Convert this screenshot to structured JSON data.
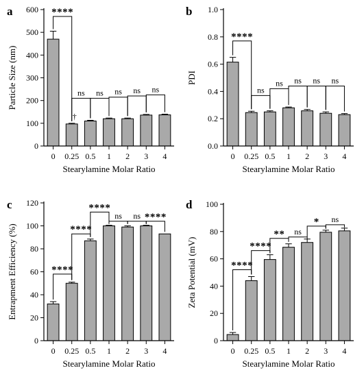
{
  "chart_data": [
    {
      "type": "bar",
      "panel": "a",
      "categories": [
        "0",
        "0.25",
        "0.5",
        "1",
        "2",
        "3",
        "4"
      ],
      "values": [
        470,
        97,
        110,
        120,
        120,
        136,
        137
      ],
      "errors": [
        35,
        3,
        3,
        3,
        3,
        3,
        3
      ],
      "xlabel": "Stearylamine Molar Ratio",
      "ylabel": "Particle Size (nm)",
      "ylim": [
        0,
        600
      ],
      "yticks": [
        "0",
        "100",
        "200",
        "300",
        "400",
        "500",
        "600"
      ],
      "annotations": [
        {
          "from": 0,
          "to": 1,
          "label": "****",
          "y": 570
        },
        {
          "from": 1,
          "to": 2,
          "label": "ns",
          "y": 210
        },
        {
          "from": 2,
          "to": 3,
          "label": "ns",
          "y": 210
        },
        {
          "from": 3,
          "to": 4,
          "label": "ns",
          "y": 215
        },
        {
          "from": 4,
          "to": 5,
          "label": "ns",
          "y": 220
        },
        {
          "from": 5,
          "to": 6,
          "label": "ns",
          "y": 225
        }
      ],
      "marks": [
        {
          "category": 1,
          "label": "†"
        }
      ]
    },
    {
      "type": "bar",
      "panel": "b",
      "categories": [
        "0",
        "0.25",
        "0.5",
        "1",
        "2",
        "3",
        "4"
      ],
      "values": [
        0.615,
        0.245,
        0.25,
        0.28,
        0.258,
        0.24,
        0.23
      ],
      "errors": [
        0.035,
        0.01,
        0.008,
        0.006,
        0.01,
        0.01,
        0.008
      ],
      "xlabel": "Stearylamine Molar Ratio",
      "ylabel": "PDI",
      "ylim": [
        0,
        1.0
      ],
      "yticks": [
        "0.0",
        "0.2",
        "0.4",
        "0.6",
        "0.8",
        "1.0"
      ],
      "annotations": [
        {
          "from": 0,
          "to": 1,
          "label": "****",
          "y": 0.77
        },
        {
          "from": 1,
          "to": 2,
          "label": "ns",
          "y": 0.37
        },
        {
          "from": 2,
          "to": 3,
          "label": "ns",
          "y": 0.42
        },
        {
          "from": 3,
          "to": 4,
          "label": "ns",
          "y": 0.44
        },
        {
          "from": 4,
          "to": 5,
          "label": "ns",
          "y": 0.44
        },
        {
          "from": 5,
          "to": 6,
          "label": "ns",
          "y": 0.44
        }
      ]
    },
    {
      "type": "bar",
      "panel": "c",
      "categories": [
        "0",
        "0.25",
        "0.5",
        "1",
        "2",
        "3",
        "4"
      ],
      "values": [
        32,
        50,
        87,
        100,
        99,
        100,
        93
      ],
      "errors": [
        2,
        1,
        1.5,
        0.5,
        1,
        0.5,
        0
      ],
      "xlabel": "Stearylamine Molar Ratio",
      "ylabel": "Entrapment Efficiency (%)",
      "ylim": [
        0,
        120
      ],
      "yticks": [
        "0",
        "20",
        "40",
        "60",
        "80",
        "100",
        "120"
      ],
      "annotations": [
        {
          "from": 0,
          "to": 1,
          "label": "****",
          "y": 58
        },
        {
          "from": 1,
          "to": 2,
          "label": "****",
          "y": 93
        },
        {
          "from": 2,
          "to": 3,
          "label": "****",
          "y": 112
        },
        {
          "from": 3,
          "to": 4,
          "label": "ns",
          "y": 104
        },
        {
          "from": 4,
          "to": 5,
          "label": "ns",
          "y": 104
        },
        {
          "from": 5,
          "to": 6,
          "label": "****",
          "y": 104
        }
      ]
    },
    {
      "type": "bar",
      "panel": "d",
      "categories": [
        "0",
        "0.25",
        "0.5",
        "1",
        "2",
        "3",
        "4"
      ],
      "values": [
        4.5,
        44,
        59.5,
        68.5,
        72,
        79.5,
        80.5
      ],
      "errors": [
        1.5,
        3,
        3.5,
        2.5,
        2.5,
        1.5,
        2
      ],
      "xlabel": "Stearylamine Molar Ratio",
      "ylabel": "Zeta Potential (mV)",
      "ylim": [
        0,
        100
      ],
      "yticks": [
        "0",
        "20",
        "40",
        "60",
        "80",
        "100"
      ],
      "annotations": [
        {
          "from": 0,
          "to": 1,
          "label": "****",
          "y": 52
        },
        {
          "from": 1,
          "to": 2,
          "label": "****",
          "y": 66
        },
        {
          "from": 2,
          "to": 3,
          "label": "**",
          "y": 75
        },
        {
          "from": 3,
          "to": 4,
          "label": "ns",
          "y": 76
        },
        {
          "from": 4,
          "to": 5,
          "label": "*",
          "y": 84
        },
        {
          "from": 5,
          "to": 6,
          "label": "ns",
          "y": 85
        }
      ]
    }
  ]
}
